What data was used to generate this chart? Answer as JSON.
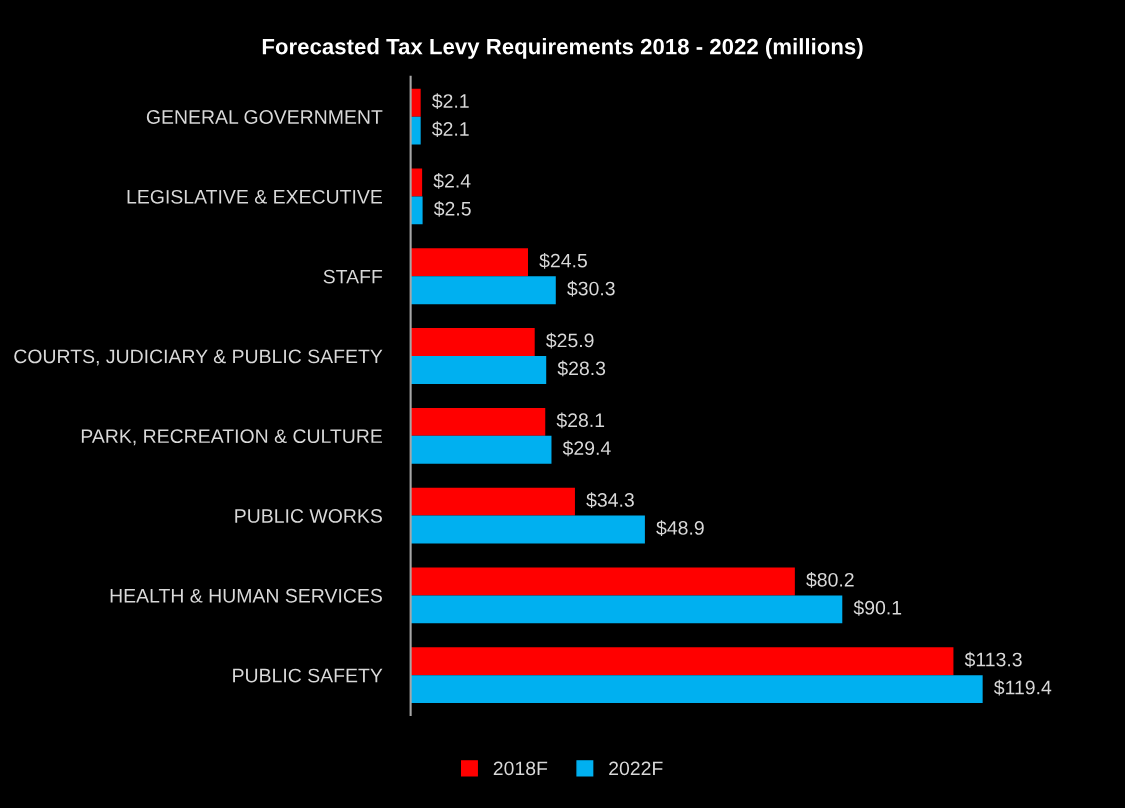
{
  "chart_data": {
    "type": "bar",
    "orientation": "horizontal",
    "title": "Forecasted Tax Levy Requirements 2018 - 2022 (millions)",
    "categories": [
      "GENERAL GOVERNMENT",
      "LEGISLATIVE & EXECUTIVE",
      "STAFF",
      "COURTS, JUDICIARY & PUBLIC SAFETY",
      "PARK, RECREATION & CULTURE",
      "PUBLIC WORKS",
      "HEALTH & HUMAN SERVICES",
      "PUBLIC SAFETY"
    ],
    "series": [
      {
        "name": "2018F",
        "color": "#ff0000",
        "values": [
          2.1,
          2.4,
          24.5,
          25.9,
          28.1,
          34.3,
          80.2,
          113.3
        ],
        "value_labels": [
          "$2.1",
          "$2.4",
          "$24.5",
          "$25.9",
          "$28.1",
          "$34.3",
          "$80.2",
          "$113.3"
        ]
      },
      {
        "name": "2022F",
        "color": "#00b0f0",
        "values": [
          2.1,
          2.5,
          30.3,
          28.3,
          29.4,
          48.9,
          90.1,
          119.4
        ],
        "value_labels": [
          "$2.1",
          "$2.5",
          "$30.3",
          "$28.3",
          "$29.4",
          "$48.9",
          "$90.1",
          "$119.4"
        ]
      }
    ],
    "legend": "bottom",
    "grid": false,
    "tick_labels": "y"
  }
}
